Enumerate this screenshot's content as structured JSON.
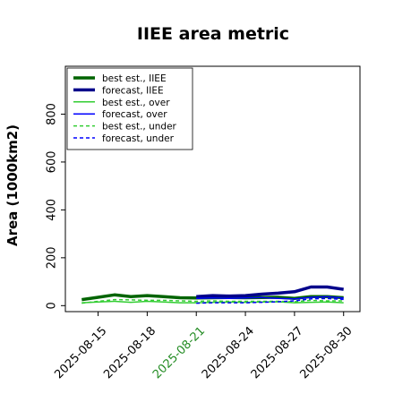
{
  "chart_data": {
    "type": "line",
    "title": "IIEE area metric",
    "xlabel": "",
    "ylabel": "Area (1000km2)",
    "x": [
      "2025-08-14",
      "2025-08-15",
      "2025-08-16",
      "2025-08-17",
      "2025-08-18",
      "2025-08-19",
      "2025-08-20",
      "2025-08-21",
      "2025-08-22",
      "2025-08-23",
      "2025-08-24",
      "2025-08-25",
      "2025-08-26",
      "2025-08-27",
      "2025-08-28",
      "2025-08-29",
      "2025-08-30"
    ],
    "xticks": [
      "2025-08-15",
      "2025-08-18",
      "2025-08-21",
      "2025-08-24",
      "2025-08-27",
      "2025-08-30"
    ],
    "xtick_colors": [
      "#000000",
      "#000000",
      "#228b22",
      "#000000",
      "#000000",
      "#000000"
    ],
    "xlim": [
      "2025-08-13",
      "2025-08-31"
    ],
    "yticks": [
      0,
      200,
      400,
      600,
      800
    ],
    "ylim": [
      -25,
      1000
    ],
    "grid": false,
    "legend_position": "top-left",
    "series": [
      {
        "name": "best est., IIEE",
        "color": "#006400",
        "style": "solid",
        "width": 3.5,
        "x": [
          "2025-08-14",
          "2025-08-15",
          "2025-08-16",
          "2025-08-17",
          "2025-08-18",
          "2025-08-19",
          "2025-08-20",
          "2025-08-21",
          "2025-08-22",
          "2025-08-23",
          "2025-08-24",
          "2025-08-25",
          "2025-08-26",
          "2025-08-27",
          "2025-08-28",
          "2025-08-29",
          "2025-08-30"
        ],
        "values": [
          25,
          35,
          45,
          38,
          42,
          38,
          33,
          32,
          33,
          34,
          33,
          34,
          35,
          30,
          38,
          38,
          33
        ]
      },
      {
        "name": "forecast, IIEE",
        "color": "#00008b",
        "style": "solid",
        "width": 3.5,
        "x": [
          "2025-08-21",
          "2025-08-22",
          "2025-08-23",
          "2025-08-24",
          "2025-08-25",
          "2025-08-26",
          "2025-08-27",
          "2025-08-28",
          "2025-08-29",
          "2025-08-30"
        ],
        "values": [
          38,
          42,
          40,
          42,
          48,
          52,
          58,
          78,
          78,
          68
        ]
      },
      {
        "name": "best est., over",
        "color": "#32cd32",
        "style": "solid",
        "width": 1.5,
        "x": [
          "2025-08-14",
          "2025-08-15",
          "2025-08-16",
          "2025-08-17",
          "2025-08-18",
          "2025-08-19",
          "2025-08-20",
          "2025-08-21",
          "2025-08-22",
          "2025-08-23",
          "2025-08-24",
          "2025-08-25",
          "2025-08-26",
          "2025-08-27",
          "2025-08-28",
          "2025-08-29",
          "2025-08-30"
        ],
        "values": [
          12,
          15,
          18,
          14,
          18,
          15,
          12,
          12,
          14,
          15,
          14,
          15,
          16,
          12,
          14,
          15,
          12
        ]
      },
      {
        "name": "forecast, over",
        "color": "#0000ff",
        "style": "solid",
        "width": 1.5,
        "x": [
          "2025-08-21",
          "2025-08-22",
          "2025-08-23",
          "2025-08-24",
          "2025-08-25",
          "2025-08-26",
          "2025-08-27",
          "2025-08-28",
          "2025-08-29",
          "2025-08-30"
        ],
        "values": [
          30,
          32,
          30,
          32,
          34,
          30,
          28,
          35,
          38,
          32
        ]
      },
      {
        "name": "best est., under",
        "color": "#32cd32",
        "style": "dashed",
        "width": 1.5,
        "x": [
          "2025-08-14",
          "2025-08-15",
          "2025-08-16",
          "2025-08-17",
          "2025-08-18",
          "2025-08-19",
          "2025-08-20",
          "2025-08-21",
          "2025-08-22",
          "2025-08-23",
          "2025-08-24",
          "2025-08-25",
          "2025-08-26",
          "2025-08-27",
          "2025-08-28",
          "2025-08-29",
          "2025-08-30"
        ],
        "values": [
          10,
          18,
          25,
          24,
          22,
          22,
          20,
          18,
          20,
          18,
          18,
          18,
          18,
          16,
          22,
          20,
          20
        ]
      },
      {
        "name": "forecast, under",
        "color": "#0000ff",
        "style": "dashed",
        "width": 1.5,
        "x": [
          "2025-08-21",
          "2025-08-22",
          "2025-08-23",
          "2025-08-24",
          "2025-08-25",
          "2025-08-26",
          "2025-08-27",
          "2025-08-28",
          "2025-08-29",
          "2025-08-30"
        ],
        "values": [
          10,
          12,
          12,
          12,
          14,
          16,
          20,
          28,
          30,
          26
        ]
      }
    ]
  }
}
